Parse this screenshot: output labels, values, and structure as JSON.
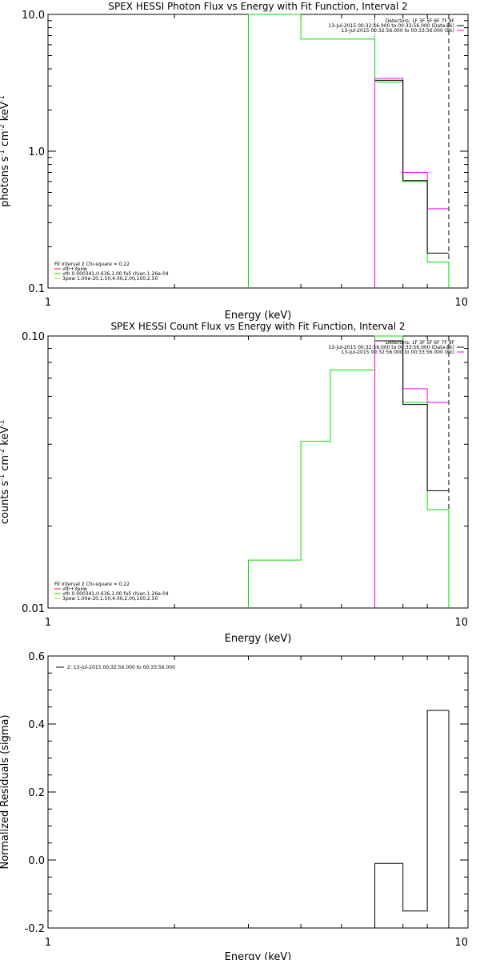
{
  "chart_data": [
    {
      "type": "line",
      "title": "SPEX HESSI Photon Flux vs Energy with Fit Function, Interval 2",
      "xlabel": "Energy (keV)",
      "ylabel": "photons s",
      "ylabel_parts": [
        "photons s",
        "-1",
        " cm",
        "-2",
        " keV",
        "-1"
      ],
      "xscale": "log",
      "yscale": "log",
      "xlim": [
        1,
        10
      ],
      "ylim": [
        0.1,
        10
      ],
      "x_ticks": [
        {
          "v": 1,
          "label": "1"
        },
        {
          "v": 10,
          "label": "10"
        }
      ],
      "y_ticks": [
        {
          "v": 0.1,
          "label": "0.1"
        },
        {
          "v": 1,
          "label": "1.0"
        },
        {
          "v": 10,
          "label": "10.0"
        }
      ],
      "fit_legend": [
        {
          "text": "Fit Interval 2   Chi-square = 0.22",
          "color": ""
        },
        {
          "text": "vth+3pow",
          "color": "#ff0000"
        },
        {
          "text": "vth 0.000341,0.636,1.00  full chian 1.26e-04",
          "color": "#00e000"
        },
        {
          "text": "3pow 1.00e-20,1.50,4.00,2.00,100,2.50",
          "color": "#e0c000"
        }
      ],
      "data_legend": [
        {
          "text": "Detectors: 1F 3F 5F 6F 7F 9F",
          "color": ""
        },
        {
          "text": "13-Jul-2015 00:32:56.000 to 00:33:56.000 (Data-Bk)",
          "color": "#000000"
        },
        {
          "text": "13-Jul-2015 00:32:56.000 to 00:33:56.000 (Bk)",
          "color": "#ff00ff"
        }
      ],
      "vlines": [
        {
          "x": 6.0,
          "style": "dotted",
          "color": "#000000"
        },
        {
          "x": 9.0,
          "style": "dashed",
          "color": "#000000"
        }
      ],
      "series": [
        {
          "name": "vth",
          "color": "#00e000",
          "stroke": "solid",
          "bin_edges": [
            3,
            3.5,
            4,
            5,
            6,
            7,
            8,
            9
          ],
          "values": [
            10,
            10,
            6.6,
            6.6,
            3.2,
            0.6,
            0.155
          ]
        },
        {
          "name": "13-Jul-2015 00:32:56.000 to 00:33:56.000 (Bk)",
          "color": "#ff00ff",
          "stroke": "solid",
          "bin_edges": [
            6,
            7,
            8,
            9
          ],
          "values": [
            3.4,
            0.7,
            0.38
          ]
        },
        {
          "name": "13-Jul-2015 00:32:56.000 to 00:33:56.000 (Data-Bk)",
          "color": "#000000",
          "stroke": "solid",
          "bin_edges": [
            6,
            7,
            8,
            9
          ],
          "values": [
            3.3,
            0.61,
            0.18
          ]
        }
      ],
      "verticals": [
        {
          "x": 3.0,
          "color": "#00e000",
          "from": 0.1,
          "to": 10
        },
        {
          "x": 6.0,
          "color": "#ff00ff",
          "from": 0.1,
          "to": 3.4
        },
        {
          "x": 9.0,
          "color": "#00e000",
          "from": 0.1,
          "to": 0.155
        }
      ]
    },
    {
      "type": "line",
      "title": "SPEX HESSI Count Flux vs Energy with Fit Function, Interval 2",
      "xlabel": "Energy (keV)",
      "ylabel": "counts s",
      "ylabel_parts": [
        "counts s",
        "-1",
        " cm",
        "-2",
        " keV",
        "-1"
      ],
      "xscale": "log",
      "yscale": "log",
      "xlim": [
        1,
        10
      ],
      "ylim": [
        0.01,
        0.1
      ],
      "x_ticks": [
        {
          "v": 1,
          "label": "1"
        },
        {
          "v": 10,
          "label": "10"
        }
      ],
      "y_ticks": [
        {
          "v": 0.01,
          "label": "0.01"
        },
        {
          "v": 0.1,
          "label": "0.10"
        }
      ],
      "fit_legend": [
        {
          "text": "Fit Interval 2   Chi-square = 0.22",
          "color": ""
        },
        {
          "text": "vth+3pow",
          "color": "#ff0000"
        },
        {
          "text": "vth 0.000341,0.636,1.00  full chian 1.26e-04",
          "color": "#00e000"
        },
        {
          "text": "3pow 1.00e-20,1.50,4.00,2.00,100,2.50",
          "color": "#e0c000"
        }
      ],
      "data_legend": [
        {
          "text": "Detectors: 1F 3F 5F 6F 7F 9F",
          "color": ""
        },
        {
          "text": "13-Jul-2015 00:32:56.000 to 00:33:56.000 (Data-Bk)",
          "color": "#000000"
        },
        {
          "text": "13-Jul-2015 00:32:56.000 to 00:33:56.000 (Bk)",
          "color": "#ff00ff"
        }
      ],
      "vlines": [
        {
          "x": 6.0,
          "style": "dotted",
          "color": "#000000"
        },
        {
          "x": 9.0,
          "style": "dashed",
          "color": "#000000"
        }
      ],
      "series": [
        {
          "name": "vth",
          "color": "#00e000",
          "stroke": "solid",
          "bin_edges": [
            3,
            4,
            4.7,
            6,
            7,
            8,
            9
          ],
          "values": [
            0.015,
            0.041,
            0.075,
            0.1,
            0.057,
            0.023
          ]
        },
        {
          "name": "13-Jul-2015 00:32:56.000 to 00:33:56.000 (Bk)",
          "color": "#ff00ff",
          "stroke": "solid",
          "bin_edges": [
            6,
            7,
            8,
            9
          ],
          "values": [
            0.096,
            0.064,
            0.057
          ]
        },
        {
          "name": "13-Jul-2015 00:32:56.000 to 00:33:56.000 (Data-Bk)",
          "color": "#000000",
          "stroke": "solid",
          "bin_edges": [
            6,
            7,
            8,
            9
          ],
          "values": [
            0.096,
            0.056,
            0.027
          ]
        }
      ],
      "verticals": [
        {
          "x": 3.0,
          "color": "#00e000",
          "from": 0.01,
          "to": 0.015
        },
        {
          "x": 6.0,
          "color": "#ff00ff",
          "from": 0.01,
          "to": 0.096
        },
        {
          "x": 9.0,
          "color": "#00e000",
          "from": 0.01,
          "to": 0.023
        }
      ]
    },
    {
      "type": "line",
      "title": "",
      "xlabel": "Energy (keV)",
      "ylabel": "Normalized Residuals (sigma)",
      "ylabel_parts": [
        "Normalized Residuals (sigma)"
      ],
      "xscale": "log",
      "yscale": "linear",
      "xlim": [
        1,
        10
      ],
      "ylim": [
        -0.2,
        0.6
      ],
      "x_ticks": [
        {
          "v": 1,
          "label": "1"
        },
        {
          "v": 10,
          "label": "10"
        }
      ],
      "y_ticks": [
        {
          "v": -0.2,
          "label": "-0.2"
        },
        {
          "v": 0.0,
          "label": "0.0"
        },
        {
          "v": 0.2,
          "label": "0.2"
        },
        {
          "v": 0.4,
          "label": "0.4"
        },
        {
          "v": 0.6,
          "label": "0.6"
        }
      ],
      "fit_legend": [],
      "data_legend": [
        {
          "text": "2: 13-Jul-2015 00:32:56.000 to 00:33:56.000",
          "color": "#000000"
        }
      ],
      "vlines": [],
      "series": [
        {
          "name": "2: 13-Jul-2015 00:32:56.000 to 00:33:56.000",
          "color": "#000000",
          "stroke": "solid",
          "bin_edges": [
            6,
            7,
            8,
            9
          ],
          "values": [
            -0.01,
            -0.15,
            0.44
          ]
        }
      ],
      "verticals": [
        {
          "x": 6.0,
          "color": "#000000",
          "from": -0.2,
          "to": -0.01
        },
        {
          "x": 9.0,
          "color": "#000000",
          "from": -0.2,
          "to": 0.44
        }
      ]
    }
  ]
}
